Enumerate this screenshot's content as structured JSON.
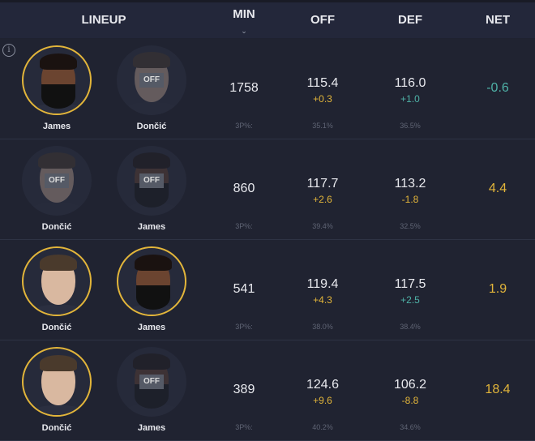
{
  "header": {
    "lineup": "LINEUP",
    "min": "MIN",
    "off": "OFF",
    "def": "DEF",
    "net": "NET",
    "sort_icon": "chevron-down-icon"
  },
  "colors": {
    "accent_gold": "#e2b53a",
    "accent_teal": "#4fb3a8"
  },
  "off_badge": "OFF",
  "info_icon": "i",
  "rows": [
    {
      "players": [
        {
          "name": "James",
          "on": true,
          "skin": "#6b4430",
          "hair": "#1a1210",
          "beard": true
        },
        {
          "name": "Dončić",
          "on": false,
          "skin": "#d9b8a0",
          "hair": "#4a3a2c",
          "beard": false
        }
      ],
      "min": "1758",
      "off": "115.4",
      "off_delta": "+0.3",
      "off_delta_color": "gold",
      "def": "116.0",
      "def_delta": "+1.0",
      "def_delta_color": "teal",
      "net": "-0.6",
      "net_color": "teal",
      "tp_label": "3P%:",
      "off_3p": "35.1%",
      "def_3p": "36.5%"
    },
    {
      "players": [
        {
          "name": "Dončić",
          "on": false,
          "skin": "#d9b8a0",
          "hair": "#4a3a2c",
          "beard": false
        },
        {
          "name": "James",
          "on": false,
          "skin": "#6b4430",
          "hair": "#1a1210",
          "beard": true
        }
      ],
      "min": "860",
      "off": "117.7",
      "off_delta": "+2.6",
      "off_delta_color": "gold",
      "def": "113.2",
      "def_delta": "-1.8",
      "def_delta_color": "gold",
      "net": "4.4",
      "net_color": "gold",
      "tp_label": "3P%:",
      "off_3p": "39.4%",
      "def_3p": "32.5%"
    },
    {
      "players": [
        {
          "name": "Dončić",
          "on": true,
          "skin": "#d9b8a0",
          "hair": "#4a3a2c",
          "beard": false
        },
        {
          "name": "James",
          "on": true,
          "skin": "#6b4430",
          "hair": "#1a1210",
          "beard": true
        }
      ],
      "min": "541",
      "off": "119.4",
      "off_delta": "+4.3",
      "off_delta_color": "gold",
      "def": "117.5",
      "def_delta": "+2.5",
      "def_delta_color": "teal",
      "net": "1.9",
      "net_color": "gold",
      "tp_label": "3P%:",
      "off_3p": "38.0%",
      "def_3p": "38.4%"
    },
    {
      "players": [
        {
          "name": "Dončić",
          "on": true,
          "skin": "#d9b8a0",
          "hair": "#4a3a2c",
          "beard": false
        },
        {
          "name": "James",
          "on": false,
          "skin": "#6b4430",
          "hair": "#1a1210",
          "beard": true
        }
      ],
      "min": "389",
      "off": "124.6",
      "off_delta": "+9.6",
      "off_delta_color": "gold",
      "def": "106.2",
      "def_delta": "-8.8",
      "def_delta_color": "gold",
      "net": "18.4",
      "net_color": "gold",
      "tp_label": "3P%:",
      "off_3p": "40.2%",
      "def_3p": "34.6%"
    }
  ]
}
